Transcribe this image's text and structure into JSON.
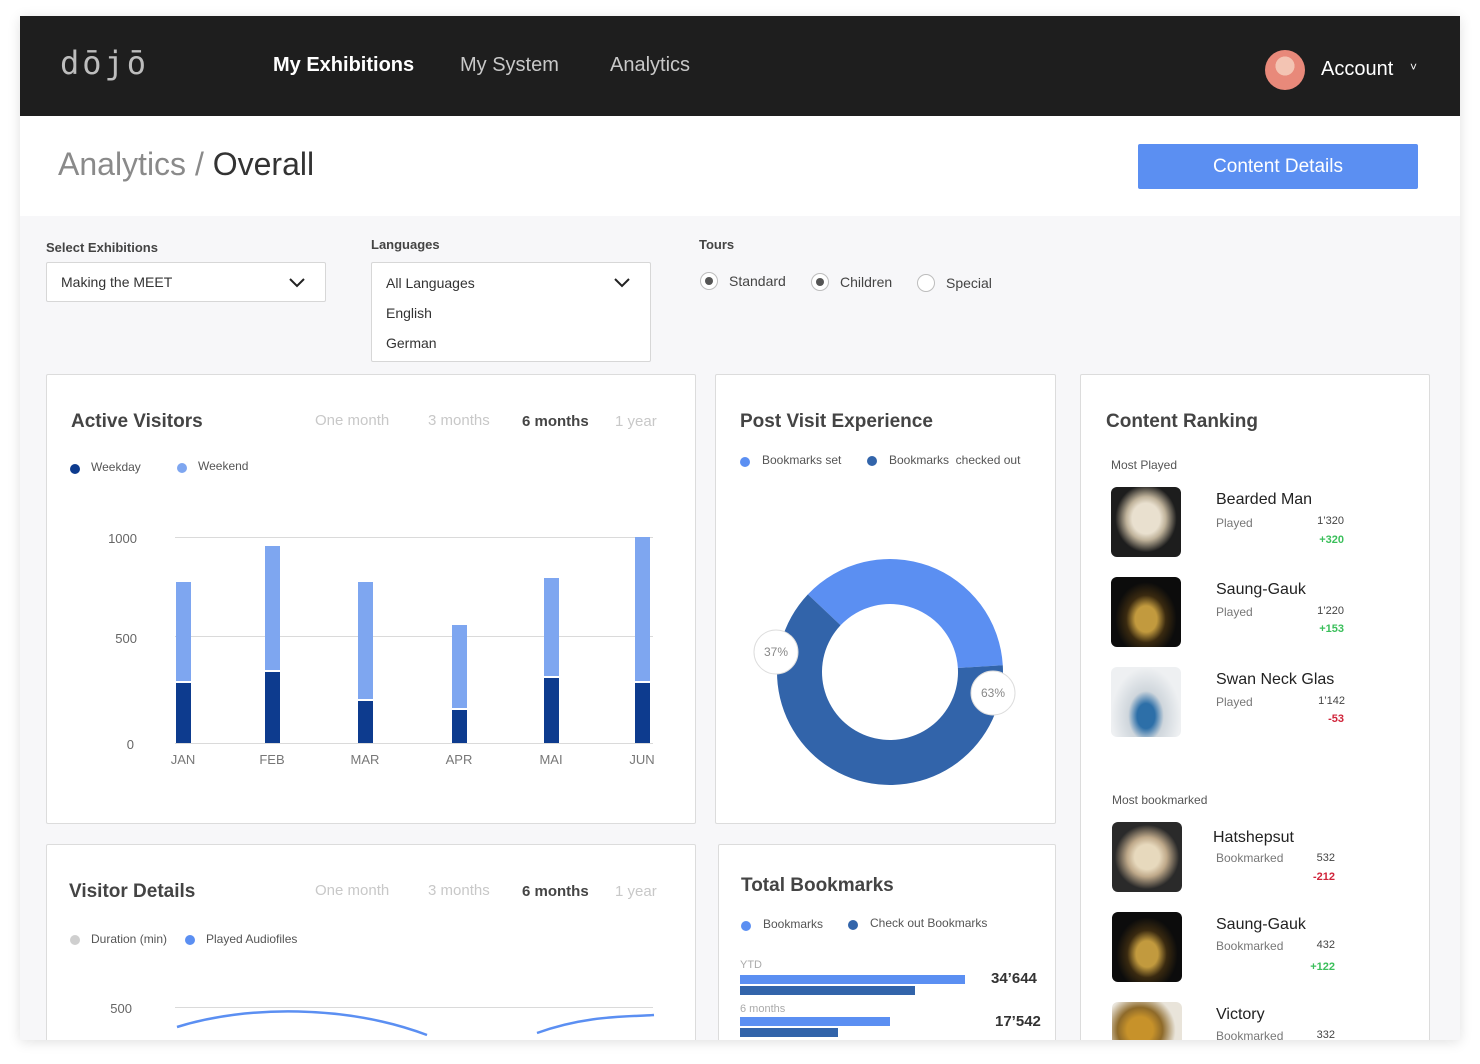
{
  "app": {
    "logo": "dōjō",
    "nav": [
      "My Exhibitions",
      "My System",
      "Analytics"
    ],
    "account_label": "Account",
    "chevron": "˅"
  },
  "header": {
    "breadcrumb_parent": "Analytics",
    "breadcrumb_sep": " / ",
    "breadcrumb_current": "Overall",
    "content_button": "Content Details"
  },
  "filters": {
    "exhibitions_label": "Select Exhibitions",
    "exhibitions_value": "Making the MEET",
    "languages_label": "Languages",
    "languages_value": "All Languages",
    "languages_options": [
      "English",
      "German"
    ],
    "tours_label": "Tours",
    "tours": [
      {
        "label": "Standard",
        "selected": true
      },
      {
        "label": "Children",
        "selected": true
      },
      {
        "label": "Special",
        "selected": false
      }
    ]
  },
  "active_visitors": {
    "title": "Active Visitors",
    "ranges": [
      "One month",
      "3 months",
      "6 months",
      "1 year"
    ],
    "active_range": "6 months",
    "legend": [
      "Weekday",
      "Weekend"
    ],
    "colors": {
      "weekday": "#0d3b8e",
      "weekend": "#7ea6f0"
    },
    "y_ticks": [
      "1000",
      "500",
      "0"
    ]
  },
  "chart_data": [
    {
      "type": "bar",
      "title": "Active Visitors",
      "categories": [
        "JAN",
        "FEB",
        "MAR",
        "APR",
        "MAI",
        "JUN"
      ],
      "series": [
        {
          "name": "Weekday",
          "values": [
            290,
            345,
            205,
            160,
            315,
            290
          ]
        },
        {
          "name": "Weekend",
          "values": [
            490,
            610,
            575,
            415,
            485,
            710
          ]
        }
      ],
      "stacked": true,
      "ylim": [
        0,
        1000
      ]
    },
    {
      "type": "pie",
      "title": "Post Visit Experience",
      "categories": [
        "Bookmarks set",
        "Bookmarks  checked out"
      ],
      "values": [
        37,
        63
      ],
      "labels": [
        "37%",
        "63%"
      ]
    }
  ],
  "post_visit": {
    "title": "Post Visit Experience",
    "legend": [
      "Bookmarks set",
      "Bookmarks  checked out"
    ],
    "colors": {
      "set": "#5b8ff2",
      "checked": "#3264aa"
    }
  },
  "visitor_details": {
    "title": "Visitor Details",
    "ranges": [
      "One month",
      "3 months",
      "6 months",
      "1 year"
    ],
    "active_range": "6 months",
    "legend": [
      "Duration (min)",
      "Played Audiofiles"
    ],
    "y_tick": "500"
  },
  "total_bookmarks": {
    "title": "Total Bookmarks",
    "legend": [
      "Bookmarks",
      "Check out Bookmarks"
    ],
    "rows": [
      {
        "label": "YTD",
        "value": "34’644",
        "bookmarks": 0.9,
        "checkout": 0.7
      },
      {
        "label": "6 months",
        "value": "17’542",
        "bookmarks": 0.6,
        "checkout": 0.39
      }
    ]
  },
  "content_ranking": {
    "title": "Content Ranking",
    "most_played_label": "Most Played",
    "most_bookmarked_label": "Most bookmarked",
    "most_played": [
      {
        "name": "Bearded Man",
        "meta": "Played",
        "value": "1’320",
        "delta": "+320",
        "trend": "up"
      },
      {
        "name": "Saung-Gauk",
        "meta": "Played",
        "value": "1’220",
        "delta": "+153",
        "trend": "up"
      },
      {
        "name": "Swan Neck Glas",
        "meta": "Played",
        "value": "1’142",
        "delta": "-53",
        "trend": "down"
      }
    ],
    "most_bookmarked": [
      {
        "name": "Hatshepsut",
        "meta": "Bookmarked",
        "value": "532",
        "delta": "-212",
        "trend": "down"
      },
      {
        "name": "Saung-Gauk",
        "meta": "Bookmarked",
        "value": "432",
        "delta": "+122",
        "trend": "up"
      },
      {
        "name": "Victory",
        "meta": "Bookmarked",
        "value": "332",
        "delta": "",
        "trend": "up"
      }
    ]
  }
}
